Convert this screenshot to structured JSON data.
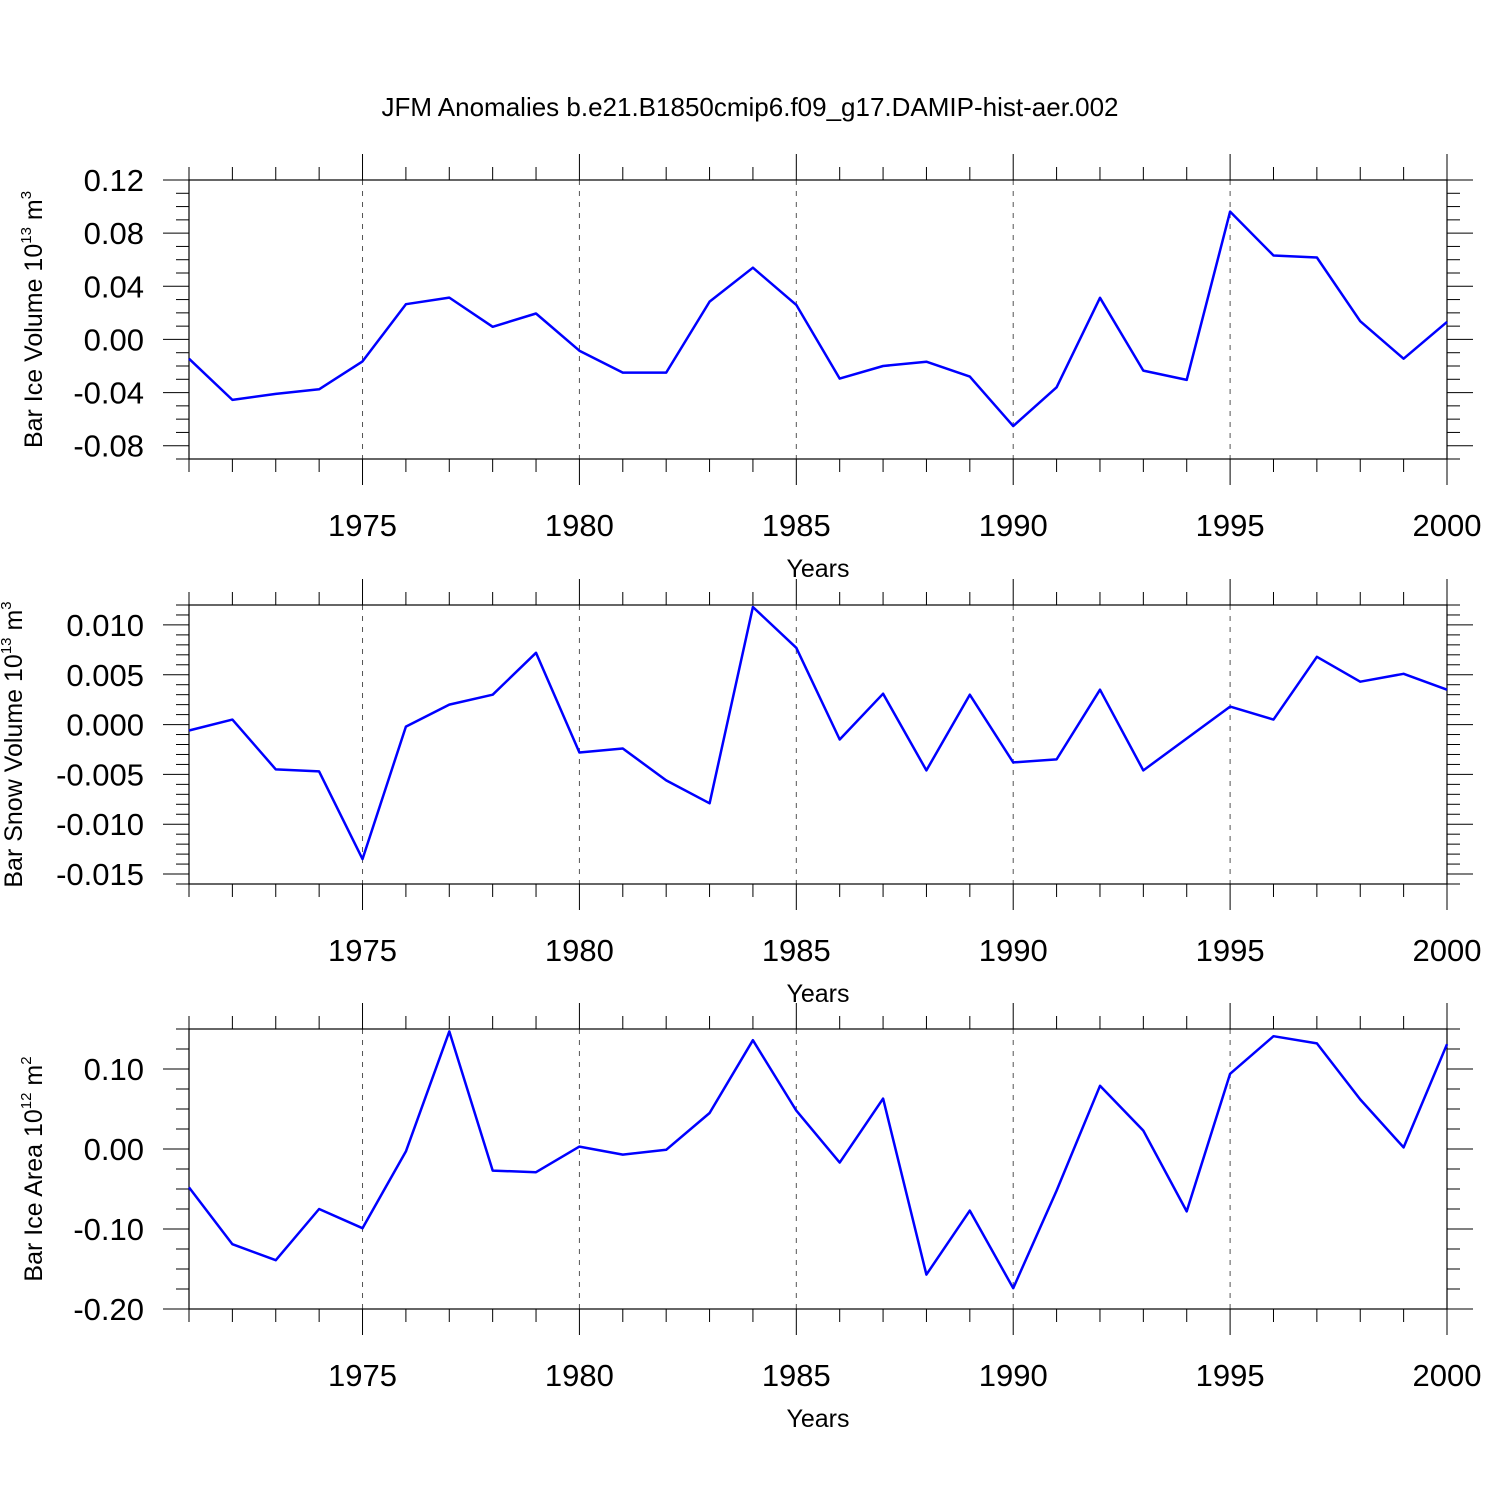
{
  "title": "JFM Anomalies b.e21.B1850cmip6.f09_g17.DAMIP-hist-aer.002",
  "line_color": "#0000ff",
  "chart_data": [
    {
      "type": "line",
      "id": "ice-volume",
      "ylabel": {
        "base": "Bar Ice Volume 10",
        "exp": "13",
        "unit": " m",
        "unit_exp": "3"
      },
      "xlabel": "Years",
      "xlim": [
        1971,
        2000
      ],
      "ylim": [
        -0.09,
        0.12
      ],
      "yticks": [
        -0.08,
        -0.04,
        0.0,
        0.04,
        0.08,
        0.12
      ],
      "ytick_labels": [
        "-0.08",
        "-0.04",
        "0.00",
        "0.04",
        "0.08",
        "0.12"
      ],
      "yminor_step": 0.01,
      "xticks": [
        1975,
        1980,
        1985,
        1990,
        1995,
        2000
      ],
      "xtick_labels": [
        "1975",
        "1980",
        "1985",
        "1990",
        "1995",
        "2000"
      ],
      "x": [
        1971,
        1972,
        1973,
        1974,
        1975,
        1976,
        1977,
        1978,
        1979,
        1980,
        1981,
        1982,
        1983,
        1984,
        1985,
        1986,
        1987,
        1988,
        1989,
        1990,
        1991,
        1992,
        1993,
        1994,
        1995,
        1996,
        1997,
        1998,
        1999,
        2000
      ],
      "values": [
        -0.0145,
        -0.0455,
        -0.041,
        -0.0375,
        -0.0165,
        0.0265,
        0.0315,
        0.0095,
        0.0195,
        -0.0085,
        -0.025,
        -0.025,
        0.0285,
        0.054,
        0.026,
        -0.0295,
        -0.02,
        -0.0168,
        -0.028,
        -0.0652,
        -0.036,
        0.0313,
        -0.0235,
        -0.0305,
        0.0962,
        0.0632,
        0.0617,
        0.0137,
        -0.0145,
        0.0132
      ]
    },
    {
      "type": "line",
      "id": "snow-volume",
      "ylabel": {
        "base": "Bar Snow Volume 10",
        "exp": "13",
        "unit": " m",
        "unit_exp": "3"
      },
      "xlabel": "Years",
      "xlim": [
        1971,
        2000
      ],
      "ylim": [
        -0.016,
        0.012
      ],
      "yticks": [
        -0.015,
        -0.01,
        -0.005,
        0.0,
        0.005,
        0.01
      ],
      "ytick_labels": [
        "-0.015",
        "-0.010",
        "-0.005",
        "0.000",
        "0.005",
        "0.010"
      ],
      "yminor_step": 0.001,
      "xticks": [
        1975,
        1980,
        1985,
        1990,
        1995,
        2000
      ],
      "xtick_labels": [
        "1975",
        "1980",
        "1985",
        "1990",
        "1995",
        "2000"
      ],
      "x": [
        1971,
        1972,
        1973,
        1974,
        1975,
        1976,
        1977,
        1978,
        1979,
        1980,
        1981,
        1982,
        1983,
        1984,
        1985,
        1986,
        1987,
        1988,
        1989,
        1990,
        1991,
        1992,
        1993,
        1994,
        1995,
        1996,
        1997,
        1998,
        1999,
        2000
      ],
      "values": [
        -0.0006,
        0.0005,
        -0.0045,
        -0.0047,
        -0.0135,
        -0.0002,
        0.002,
        0.003,
        0.0072,
        -0.0028,
        -0.0024,
        -0.0056,
        -0.0079,
        0.0118,
        0.0077,
        -0.0015,
        0.0031,
        -0.0046,
        0.003,
        -0.0038,
        -0.0035,
        0.0035,
        -0.0046,
        -0.0014,
        0.0018,
        0.0005,
        0.0068,
        0.0043,
        0.0051,
        0.0035
      ]
    },
    {
      "type": "line",
      "id": "ice-area",
      "ylabel": {
        "base": "Bar Ice Area 10",
        "exp": "12",
        "unit": " m",
        "unit_exp": "2"
      },
      "xlabel": "Years",
      "xlim": [
        1971,
        2000
      ],
      "ylim": [
        -0.2,
        0.15
      ],
      "yticks": [
        -0.2,
        -0.1,
        0.0,
        0.1
      ],
      "ytick_labels": [
        "-0.20",
        "-0.10",
        "0.00",
        "0.10"
      ],
      "yminor_step": 0.025,
      "xticks": [
        1975,
        1980,
        1985,
        1990,
        1995,
        2000
      ],
      "xtick_labels": [
        "1975",
        "1980",
        "1985",
        "1990",
        "1995",
        "2000"
      ],
      "x": [
        1971,
        1972,
        1973,
        1974,
        1975,
        1976,
        1977,
        1978,
        1979,
        1980,
        1981,
        1982,
        1983,
        1984,
        1985,
        1986,
        1987,
        1988,
        1989,
        1990,
        1991,
        1992,
        1993,
        1994,
        1995,
        1996,
        1997,
        1998,
        1999,
        2000
      ],
      "values": [
        -0.048,
        -0.119,
        -0.139,
        -0.075,
        -0.099,
        -0.003,
        0.147,
        -0.027,
        -0.029,
        0.003,
        -0.007,
        -0.001,
        0.045,
        0.136,
        0.048,
        -0.017,
        0.063,
        -0.157,
        -0.077,
        -0.174,
        -0.052,
        0.079,
        0.023,
        -0.078,
        0.094,
        0.141,
        0.132,
        0.062,
        0.002,
        0.131
      ]
    }
  ]
}
